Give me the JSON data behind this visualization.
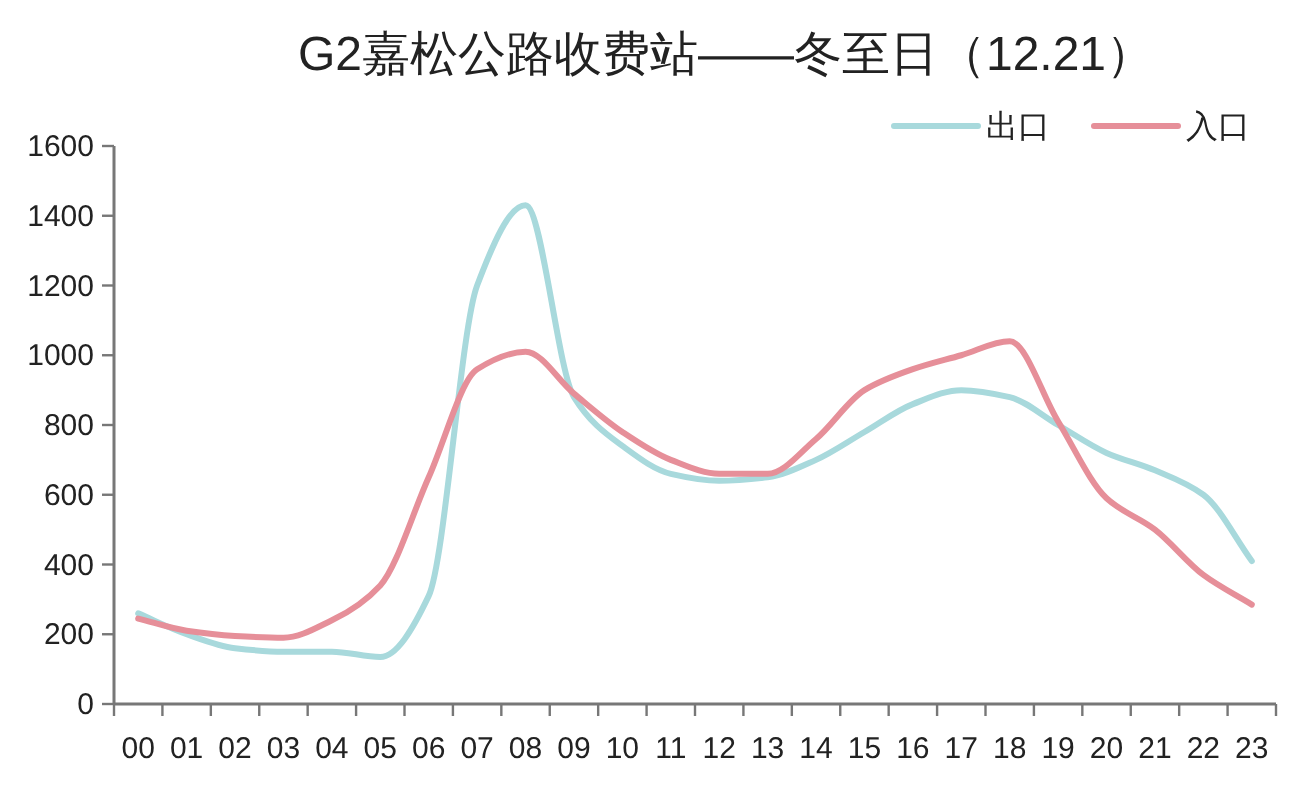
{
  "chart_data": {
    "type": "line",
    "title": "G2嘉松公路收费站——冬至日（12.21）",
    "categories": [
      "00",
      "01",
      "02",
      "03",
      "04",
      "05",
      "06",
      "07",
      "08",
      "09",
      "10",
      "11",
      "12",
      "13",
      "14",
      "15",
      "16",
      "17",
      "18",
      "19",
      "20",
      "21",
      "22",
      "23"
    ],
    "series": [
      {
        "name": "出口",
        "color": "#a8d9dc",
        "values": [
          260,
          200,
          160,
          150,
          150,
          135,
          310,
          1200,
          1430,
          880,
          740,
          660,
          640,
          650,
          700,
          780,
          860,
          900,
          880,
          800,
          720,
          670,
          600,
          410
        ]
      },
      {
        "name": "入口",
        "color": "#e68f99",
        "values": [
          245,
          210,
          195,
          190,
          240,
          340,
          650,
          960,
          1010,
          890,
          780,
          700,
          660,
          660,
          760,
          900,
          960,
          1000,
          1040,
          810,
          590,
          500,
          370,
          285
        ]
      }
    ],
    "ylim": [
      0,
      1600
    ],
    "yticks": [
      0,
      200,
      400,
      600,
      800,
      1000,
      1200,
      1400,
      1600
    ],
    "legend": "top right",
    "marker": "none",
    "line_style": "solid"
  }
}
